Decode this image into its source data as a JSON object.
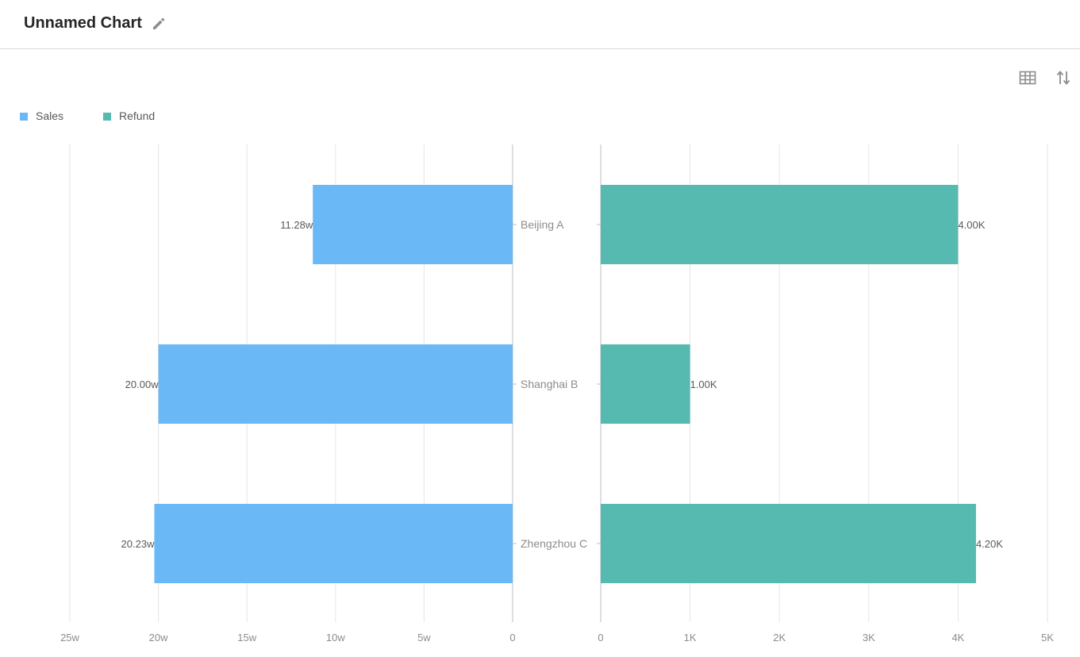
{
  "header": {
    "title": "Unnamed Chart",
    "edit_icon": "pencil-icon"
  },
  "toolbar": {
    "table_icon": "table-icon",
    "swap_icon": "sort-swap-icon"
  },
  "colors": {
    "sales": "#6bb8f6",
    "refund": "#56bab0",
    "grid": "#e6e6e6",
    "axis": "#bfbfbf",
    "tick_text": "#8c8c8c",
    "label_text": "#595959"
  },
  "chart_data": {
    "type": "bar",
    "orientation": "horizontal-mirrored",
    "categories": [
      "Beijing A",
      "Shanghai B",
      "Zhengzhou C"
    ],
    "series": [
      {
        "name": "Sales",
        "side": "left",
        "values": [
          112800,
          200000,
          202300
        ],
        "data_labels": [
          "11.28w",
          "20.00w",
          "20.23w"
        ],
        "range": [
          0,
          250000
        ],
        "ticks": [
          0,
          50000,
          100000,
          150000,
          200000,
          250000
        ],
        "tick_labels": [
          "0",
          "5w",
          "10w",
          "15w",
          "20w",
          "25w"
        ]
      },
      {
        "name": "Refund",
        "side": "right",
        "values": [
          4000,
          1000,
          4200
        ],
        "data_labels": [
          "4.00K",
          "1.00K",
          "4.20K"
        ],
        "range": [
          0,
          5000
        ],
        "ticks": [
          0,
          1000,
          2000,
          3000,
          4000,
          5000
        ],
        "tick_labels": [
          "0",
          "1K",
          "2K",
          "3K",
          "4K",
          "5K"
        ]
      }
    ],
    "legend_position": "top-left",
    "grid": true
  }
}
